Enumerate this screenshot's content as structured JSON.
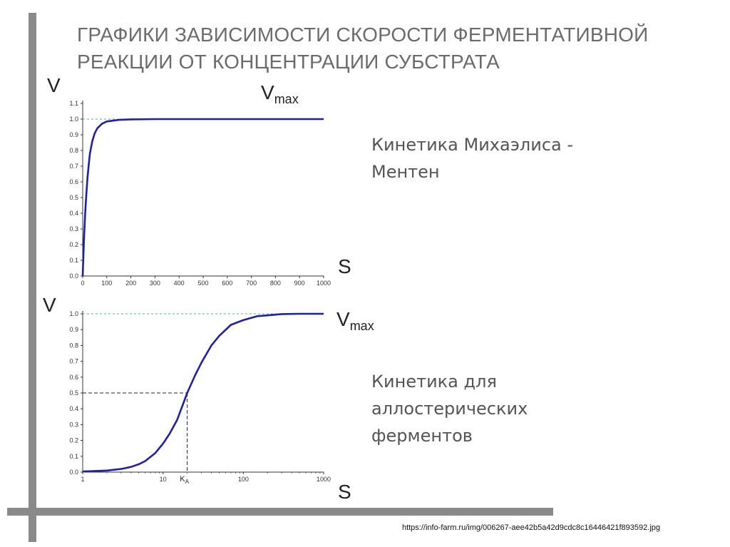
{
  "slide": {
    "title_line1": "Графики зависимости скорости ферментативной",
    "title_line2": "реакции от концентрации субстрата",
    "caption_top_line1": "Кинетика Михаэлиса -",
    "caption_top_line2": "Ментен",
    "caption_bottom_line1": "Кинетика для",
    "caption_bottom_line2": "аллостерических",
    "caption_bottom_line3": "ферментов",
    "source_url": "https://info-farm.ru/img/006267-aee42b5a42d9cdc8c16446421f893592.jpg"
  },
  "colors": {
    "curve": "#1f1fa8",
    "vmax_line": "#3cb88e",
    "dashed_guide": "#222222",
    "text_gray": "#6b6b6b",
    "bars": "#8a8a8a"
  },
  "chart_data": [
    {
      "type": "line",
      "axis_label_y": "V",
      "axis_label_x": "S",
      "vmax_label": "V",
      "vmax_sub": "max",
      "xlim": [
        0,
        1000
      ],
      "ylim": [
        0,
        1.1
      ],
      "x_ticks": [
        0,
        100,
        200,
        300,
        400,
        500,
        600,
        700,
        800,
        900,
        1000
      ],
      "x_tick_labels": [
        "0",
        "100",
        "200",
        "300",
        "400",
        "500",
        "600",
        "700",
        "800",
        "900",
        "1000"
      ],
      "y_ticks": [
        0.0,
        0.1,
        0.2,
        0.3,
        0.4,
        0.5,
        0.6,
        0.7,
        0.8,
        0.9,
        1.0,
        1.1
      ],
      "y_tick_labels": [
        "0.0",
        "0.1",
        "0.2",
        "0.3",
        "0.4",
        "0.5",
        "0.6",
        "0.7",
        "0.8",
        "0.9",
        "1.0",
        "1.1"
      ],
      "vmax": 1.0,
      "series": [
        {
          "x": [
            0,
            5,
            10,
            15,
            20,
            25,
            30,
            40,
            50,
            60,
            80,
            100,
            150,
            200,
            300,
            400,
            600,
            800,
            1000
          ],
          "y": [
            0.0,
            0.22,
            0.39,
            0.52,
            0.63,
            0.71,
            0.78,
            0.86,
            0.91,
            0.94,
            0.97,
            0.985,
            0.995,
            0.998,
            1.0,
            1.0,
            1.0,
            1.0,
            1.0
          ]
        }
      ]
    },
    {
      "type": "line",
      "axis_label_y": "V",
      "axis_label_x": "S",
      "vmax_label": "V",
      "vmax_sub": "max",
      "x_scale": "log",
      "xlim": [
        1,
        1000
      ],
      "ylim": [
        0,
        1.0
      ],
      "x_ticks": [
        1,
        10,
        100,
        1000
      ],
      "x_tick_labels": [
        "1",
        "10",
        "100",
        "1000"
      ],
      "ka_label": "K",
      "ka_sub": "A",
      "ka_value": 20,
      "half_v": 0.5,
      "y_ticks": [
        0.0,
        0.1,
        0.2,
        0.3,
        0.4,
        0.5,
        0.6,
        0.7,
        0.8,
        0.9,
        1.0
      ],
      "y_tick_labels": [
        "0.0",
        "0.1",
        "0.2",
        "0.3",
        "0.4",
        "0.5",
        "0.6",
        "0.7",
        "0.8",
        "0.9",
        "1.0"
      ],
      "vmax": 1.0,
      "series": [
        {
          "x": [
            1,
            2,
            3,
            4,
            5,
            6,
            8,
            10,
            12,
            15,
            20,
            25,
            30,
            40,
            50,
            70,
            100,
            150,
            200,
            300,
            500,
            1000
          ],
          "y": [
            0.004,
            0.01,
            0.02,
            0.033,
            0.05,
            0.07,
            0.12,
            0.18,
            0.24,
            0.33,
            0.5,
            0.61,
            0.69,
            0.8,
            0.86,
            0.93,
            0.96,
            0.985,
            0.99,
            0.998,
            1.0,
            1.0
          ]
        }
      ]
    }
  ]
}
